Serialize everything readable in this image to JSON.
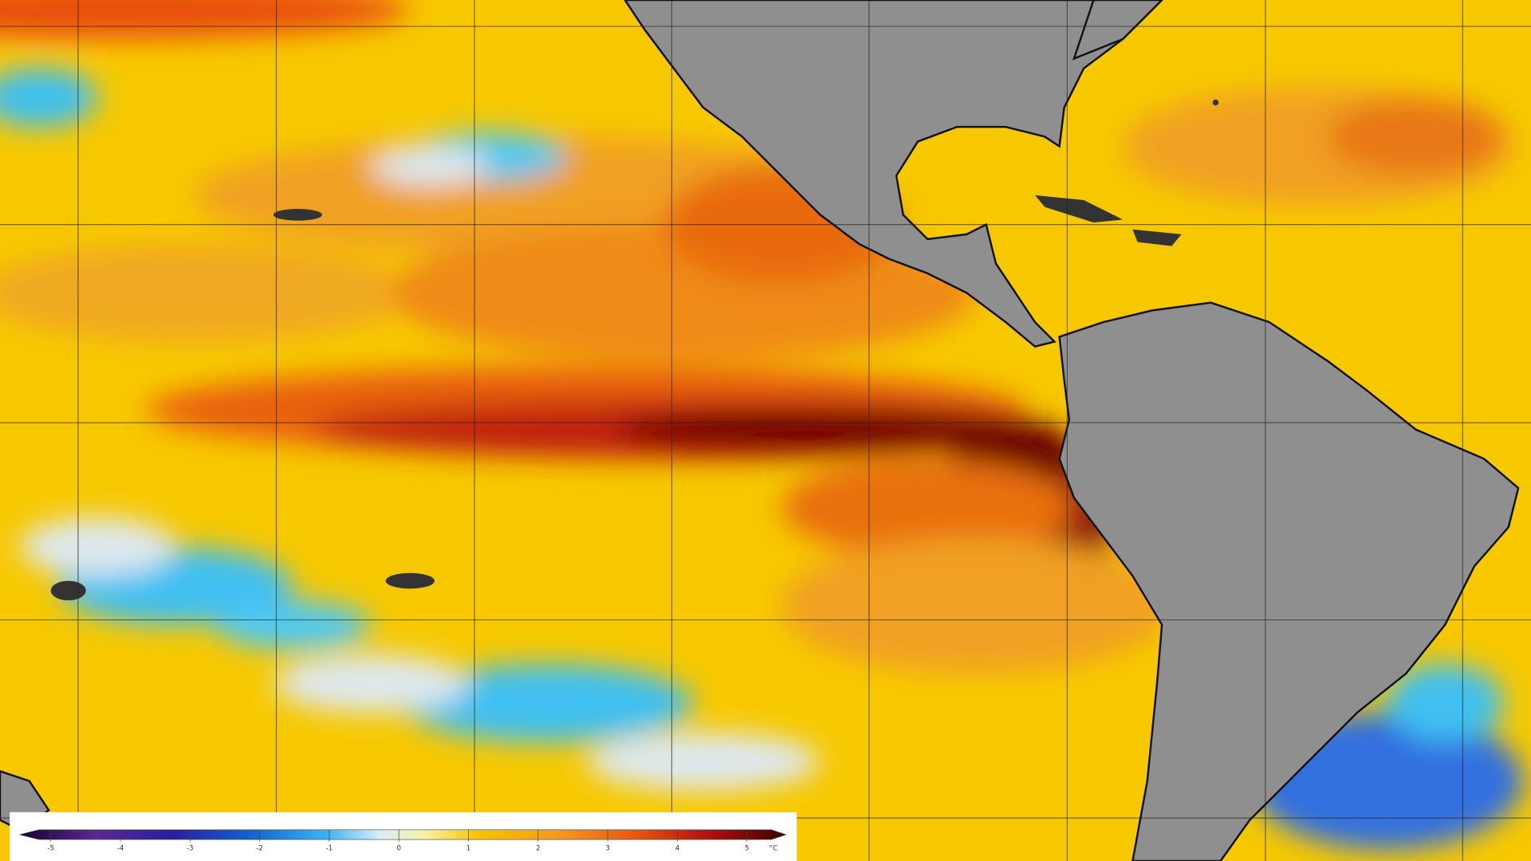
{
  "legend": {
    "ticks": [
      -5,
      -4,
      -3,
      -2,
      -1,
      0,
      1,
      2,
      3,
      4,
      5
    ],
    "unit": "°C"
  }
}
